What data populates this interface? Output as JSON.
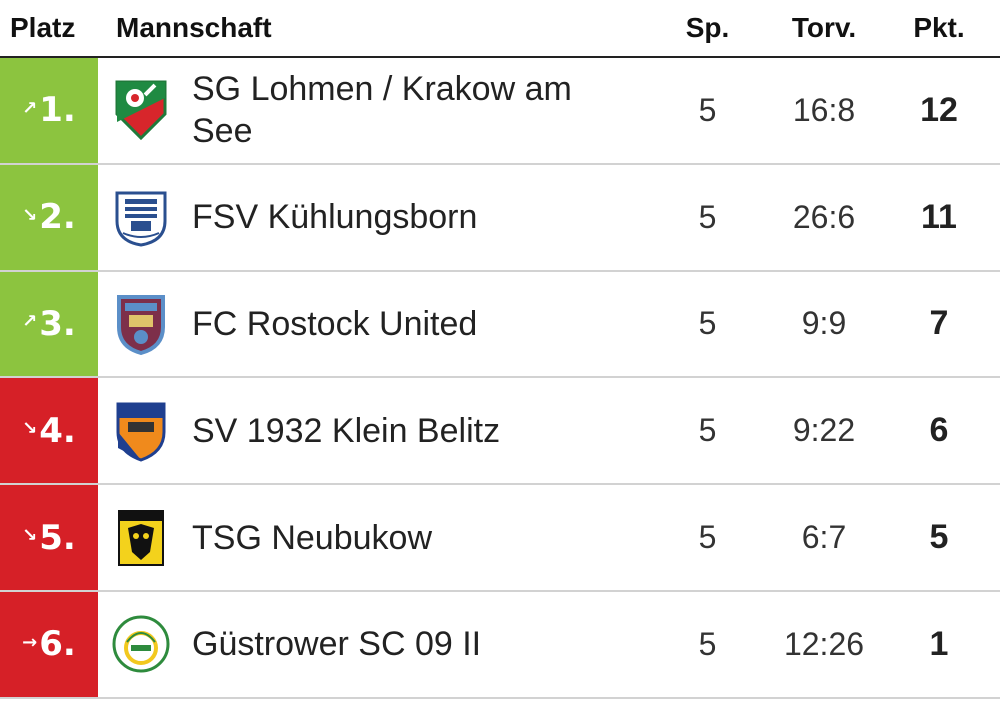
{
  "header": {
    "platz": "Platz",
    "mannschaft": "Mannschaft",
    "sp": "Sp.",
    "torv": "Torv.",
    "pkt": "Pkt."
  },
  "colors": {
    "green": "#8cc43f",
    "red": "#d62027"
  },
  "rows": [
    {
      "rank": "1.",
      "trend": "↗",
      "trend_icon": "arrow-up-right-icon",
      "zone": "green",
      "team": "SG Lohmen / Krakow am See",
      "sp": "5",
      "torv": "16:8",
      "pkt": "12"
    },
    {
      "rank": "2.",
      "trend": "↘",
      "trend_icon": "arrow-down-right-icon",
      "zone": "green",
      "team": "FSV Kühlungsborn",
      "sp": "5",
      "torv": "26:6",
      "pkt": "11"
    },
    {
      "rank": "3.",
      "trend": "↗",
      "trend_icon": "arrow-up-right-icon",
      "zone": "green",
      "team": "FC Rostock United",
      "sp": "5",
      "torv": "9:9",
      "pkt": "7"
    },
    {
      "rank": "4.",
      "trend": "↘",
      "trend_icon": "arrow-down-right-icon",
      "zone": "red",
      "team": "SV 1932 Klein Belitz",
      "sp": "5",
      "torv": "9:22",
      "pkt": "6"
    },
    {
      "rank": "5.",
      "trend": "↘",
      "trend_icon": "arrow-down-right-icon",
      "zone": "red",
      "team": "TSG Neubukow",
      "sp": "5",
      "torv": "6:7",
      "pkt": "5"
    },
    {
      "rank": "6.",
      "trend": "→",
      "trend_icon": "arrow-right-icon",
      "zone": "red",
      "team": "Güstrower SC 09 II",
      "sp": "5",
      "torv": "12:26",
      "pkt": "1"
    }
  ]
}
